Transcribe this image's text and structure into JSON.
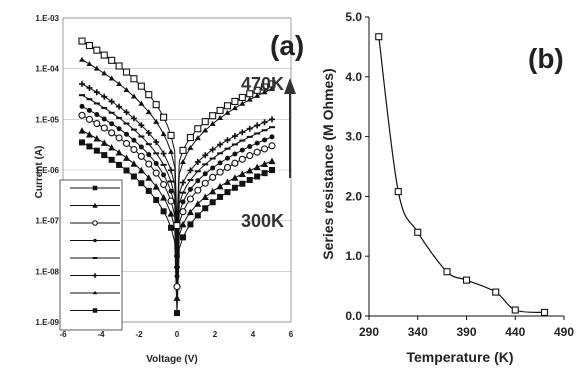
{
  "chart_data": [
    {
      "type": "scatter",
      "panel_label": "(a)",
      "xlabel": "Voltage (V)",
      "ylabel": "Current (A)",
      "xlim": [
        -6,
        6
      ],
      "ylim": [
        1e-09,
        0.001
      ],
      "yscale": "log",
      "xticks": [
        "-6",
        "-4",
        "-2",
        "0",
        "2",
        "4",
        "6"
      ],
      "yticks": [
        "1.E-09",
        "1.E-08",
        "1.E-07",
        "1.E-06",
        "1.E-05",
        "1.E-04",
        "1.E-03"
      ],
      "annotations": [
        "470K",
        "300K"
      ],
      "legend_placement": "bottom-left",
      "legend_entries": 8,
      "series": [
        {
          "marker": "filled-square",
          "left_current": 3.5e-06,
          "right_current": 1e-06,
          "near_zero": 1.5e-09
        },
        {
          "marker": "filled-triangle",
          "left_current": 6e-06,
          "right_current": 1.5e-06,
          "near_zero": 3e-09
        },
        {
          "marker": "open-circle",
          "left_current": 1.2e-05,
          "right_current": 3e-06,
          "near_zero": 5e-09
        },
        {
          "marker": "filled-circle",
          "left_current": 1.8e-05,
          "right_current": 4.5e-06,
          "near_zero": 8e-09
        },
        {
          "marker": "dash",
          "left_current": 3e-05,
          "right_current": 7e-06,
          "near_zero": 1.2e-08
        },
        {
          "marker": "plus",
          "left_current": 5e-05,
          "right_current": 1e-05,
          "near_zero": 2e-08
        },
        {
          "marker": "small-triangle",
          "left_current": 0.00015,
          "right_current": 4e-05,
          "near_zero": 4e-08
        },
        {
          "marker": "open-square",
          "left_current": 0.00035,
          "right_current": 5e-05,
          "near_zero": 8e-08
        }
      ]
    },
    {
      "type": "line",
      "panel_label": "(b)",
      "xlabel": "Temperature (K)",
      "ylabel": "Series resistance (M Ohmes)",
      "xlim": [
        290,
        490
      ],
      "ylim": [
        0,
        5
      ],
      "xticks": [
        "290",
        "340",
        "390",
        "440",
        "490"
      ],
      "yticks": [
        "0.0",
        "1.0",
        "2.0",
        "3.0",
        "4.0",
        "5.0"
      ],
      "marker": "open-square",
      "x": [
        300,
        320,
        340,
        370,
        390,
        420,
        440,
        470
      ],
      "y": [
        4.67,
        2.08,
        1.4,
        0.74,
        0.6,
        0.4,
        0.1,
        0.06
      ]
    }
  ]
}
